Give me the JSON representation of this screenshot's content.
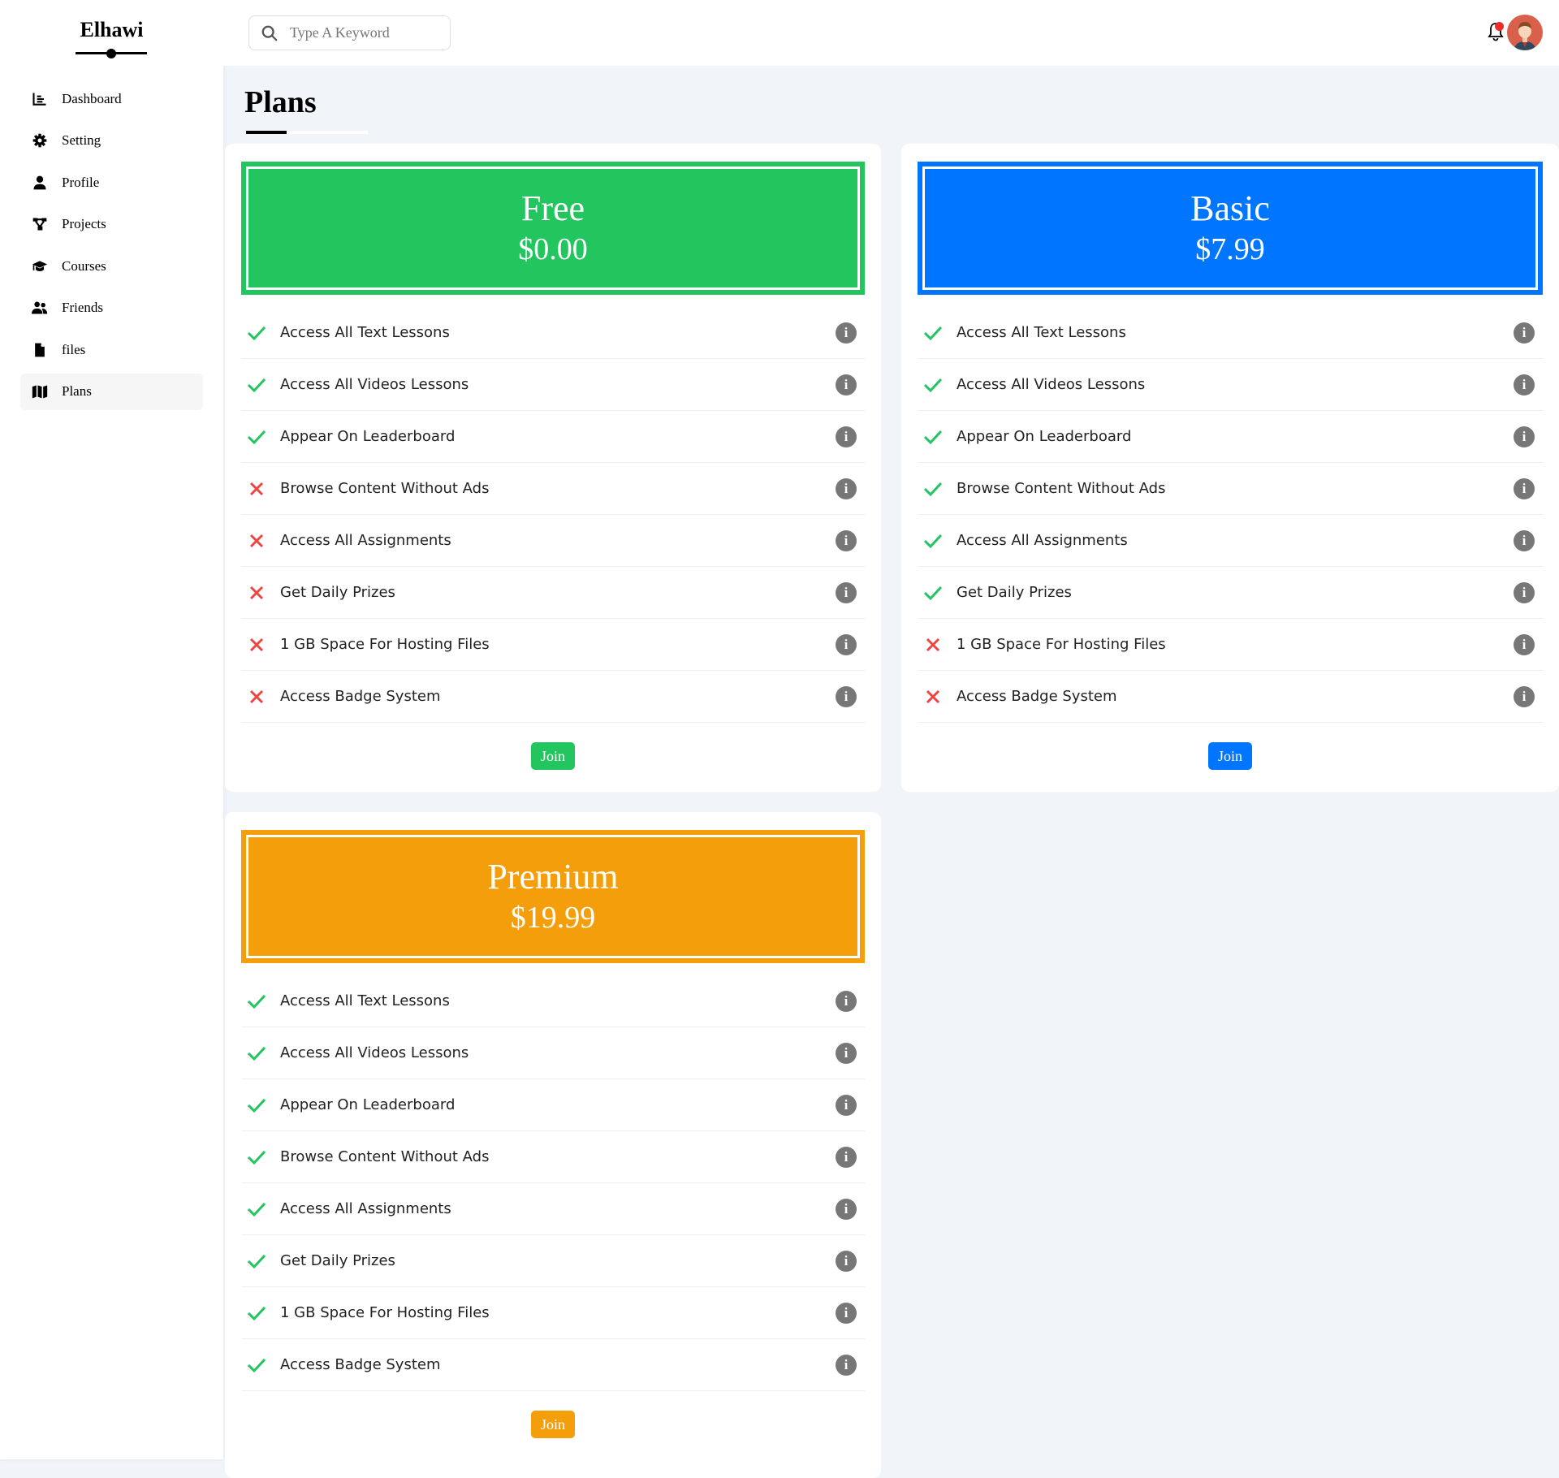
{
  "app": {
    "logo": "Elhawi"
  },
  "sidebar": {
    "items": [
      {
        "label": "Dashboard",
        "icon": "chart-icon"
      },
      {
        "label": "Setting",
        "icon": "gear-icon"
      },
      {
        "label": "Profile",
        "icon": "user-icon"
      },
      {
        "label": "Projects",
        "icon": "diagram-icon"
      },
      {
        "label": "Courses",
        "icon": "graduation-cap-icon"
      },
      {
        "label": "Friends",
        "icon": "users-icon"
      },
      {
        "label": "files",
        "icon": "file-icon"
      },
      {
        "label": "Plans",
        "icon": "map-icon",
        "active": true
      }
    ]
  },
  "header": {
    "search_placeholder": "Type A Keyword",
    "has_notification": true
  },
  "page": {
    "title": "Plans"
  },
  "plans": [
    {
      "name": "Free",
      "price": "$0.00",
      "color": "#22c55e",
      "join": "Join",
      "features": [
        {
          "text": "Access All Text Lessons",
          "included": true
        },
        {
          "text": "Access All Videos Lessons",
          "included": true
        },
        {
          "text": "Appear On Leaderboard",
          "included": true
        },
        {
          "text": "Browse Content Without Ads",
          "included": false
        },
        {
          "text": "Access All Assignments",
          "included": false
        },
        {
          "text": "Get Daily Prizes",
          "included": false
        },
        {
          "text": "1 GB Space For Hosting Files",
          "included": false
        },
        {
          "text": "Access Badge System",
          "included": false
        }
      ]
    },
    {
      "name": "Basic",
      "price": "$7.99",
      "color": "#0075ff",
      "join": "Join",
      "features": [
        {
          "text": "Access All Text Lessons",
          "included": true
        },
        {
          "text": "Access All Videos Lessons",
          "included": true
        },
        {
          "text": "Appear On Leaderboard",
          "included": true
        },
        {
          "text": "Browse Content Without Ads",
          "included": true
        },
        {
          "text": "Access All Assignments",
          "included": true
        },
        {
          "text": "Get Daily Prizes",
          "included": true
        },
        {
          "text": "1 GB Space For Hosting Files",
          "included": false
        },
        {
          "text": "Access Badge System",
          "included": false
        }
      ]
    },
    {
      "name": "Premium",
      "price": "$19.99",
      "color": "#f59e0b",
      "join": "Join",
      "features": [
        {
          "text": "Access All Text Lessons",
          "included": true
        },
        {
          "text": "Access All Videos Lessons",
          "included": true
        },
        {
          "text": "Appear On Leaderboard",
          "included": true
        },
        {
          "text": "Browse Content Without Ads",
          "included": true
        },
        {
          "text": "Access All Assignments",
          "included": true
        },
        {
          "text": "Get Daily Prizes",
          "included": true
        },
        {
          "text": "1 GB Space For Hosting Files",
          "included": true
        },
        {
          "text": "Access Badge System",
          "included": true
        }
      ]
    }
  ],
  "colors": {
    "check": "#22c55e",
    "cross": "#ef4444",
    "background": "#f1f5f9"
  }
}
